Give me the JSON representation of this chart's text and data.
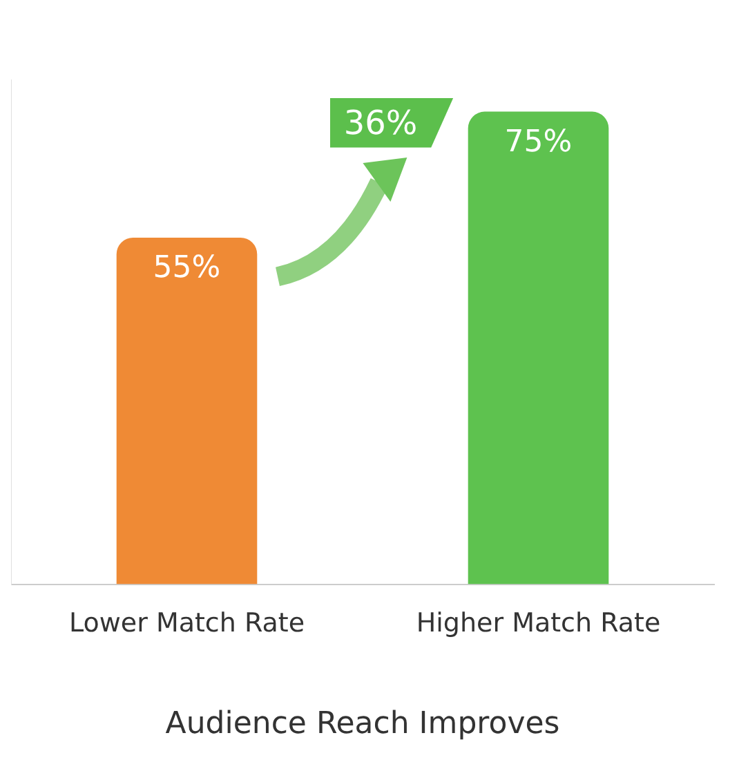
{
  "chart_data": {
    "type": "bar",
    "xlabel": "Audience Reach Improves",
    "categories": [
      "Lower Match Rate",
      "Higher Match Rate"
    ],
    "values": [
      55,
      75
    ],
    "colors": [
      "#ef8a35",
      "#5ec24f"
    ],
    "value_labels": [
      "55%",
      "75%"
    ],
    "annotations": [
      "36%"
    ],
    "tick_labels": "x",
    "grid": false,
    "legend": false
  }
}
